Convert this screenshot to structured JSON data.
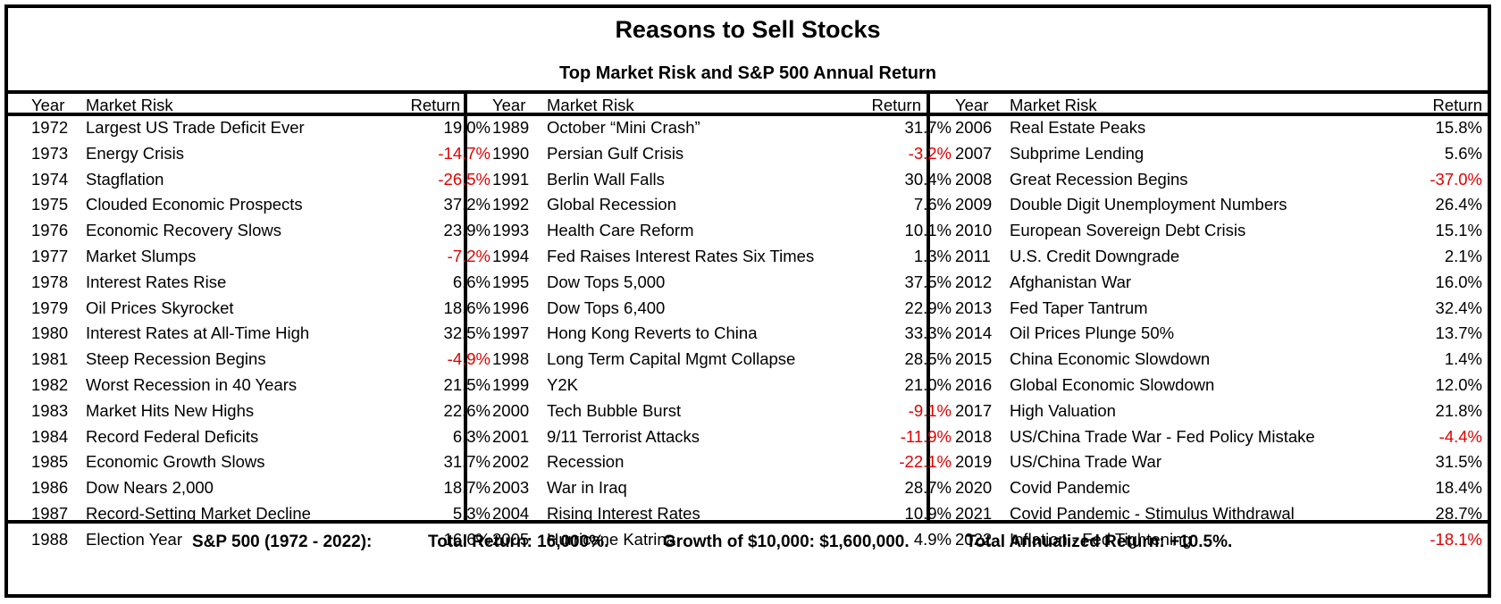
{
  "title": "Reasons to Sell Stocks",
  "subtitle": "Top Market Risk and S&P 500 Annual Return",
  "headers": {
    "year": "Year",
    "risk": "Market Risk",
    "return": "Return"
  },
  "negative_color": "#e00000",
  "columns": [
    {
      "rows": [
        {
          "year": "1972",
          "risk": "Largest US Trade Deficit Ever",
          "ret": "19.0%"
        },
        {
          "year": "1973",
          "risk": "Energy Crisis",
          "ret": "-14.7%"
        },
        {
          "year": "1974",
          "risk": "Stagflation",
          "ret": "-26.5%"
        },
        {
          "year": "1975",
          "risk": "Clouded Economic Prospects",
          "ret": "37.2%"
        },
        {
          "year": "1976",
          "risk": "Economic Recovery Slows",
          "ret": "23.9%"
        },
        {
          "year": "1977",
          "risk": "Market Slumps",
          "ret": "-7.2%"
        },
        {
          "year": "1978",
          "risk": "Interest Rates Rise",
          "ret": "6.6%"
        },
        {
          "year": "1979",
          "risk": "Oil Prices Skyrocket",
          "ret": "18.6%"
        },
        {
          "year": "1980",
          "risk": "Interest Rates at All-Time High",
          "ret": "32.5%"
        },
        {
          "year": "1981",
          "risk": "Steep Recession Begins",
          "ret": "-4.9%"
        },
        {
          "year": "1982",
          "risk": "Worst Recession in 40 Years",
          "ret": "21.5%"
        },
        {
          "year": "1983",
          "risk": "Market Hits New Highs",
          "ret": "22.6%"
        },
        {
          "year": "1984",
          "risk": "Record Federal Deficits",
          "ret": "6.3%"
        },
        {
          "year": "1985",
          "risk": "Economic Growth Slows",
          "ret": "31.7%"
        },
        {
          "year": "1986",
          "risk": "Dow Nears 2,000",
          "ret": "18.7%"
        },
        {
          "year": "1987",
          "risk": "Record-Setting Market Decline",
          "ret": "5.3%"
        },
        {
          "year": "1988",
          "risk": "Election Year",
          "ret": "16.6%"
        }
      ]
    },
    {
      "rows": [
        {
          "year": "1989",
          "risk": "October “Mini Crash”",
          "ret": "31.7%"
        },
        {
          "year": "1990",
          "risk": "Persian Gulf Crisis",
          "ret": "-3.2%"
        },
        {
          "year": "1991",
          "risk": "Berlin Wall Falls",
          "ret": "30.4%"
        },
        {
          "year": "1992",
          "risk": "Global Recession",
          "ret": "7.6%"
        },
        {
          "year": "1993",
          "risk": "Health Care Reform",
          "ret": "10.1%"
        },
        {
          "year": "1994",
          "risk": "Fed Raises Interest Rates Six Times",
          "ret": "1.3%"
        },
        {
          "year": "1995",
          "risk": "Dow Tops 5,000",
          "ret": "37.5%"
        },
        {
          "year": "1996",
          "risk": "Dow Tops 6,400",
          "ret": "22.9%"
        },
        {
          "year": "1997",
          "risk": "Hong Kong Reverts to China",
          "ret": "33.3%"
        },
        {
          "year": "1998",
          "risk": "Long Term Capital Mgmt Collapse",
          "ret": "28.5%"
        },
        {
          "year": "1999",
          "risk": "Y2K",
          "ret": "21.0%"
        },
        {
          "year": "2000",
          "risk": "Tech Bubble Burst",
          "ret": "-9.1%"
        },
        {
          "year": "2001",
          "risk": "9/11 Terrorist Attacks",
          "ret": "-11.9%"
        },
        {
          "year": "2002",
          "risk": "Recession",
          "ret": "-22.1%"
        },
        {
          "year": "2003",
          "risk": "War in Iraq",
          "ret": "28.7%"
        },
        {
          "year": "2004",
          "risk": "Rising Interest Rates",
          "ret": "10.9%"
        },
        {
          "year": "2005",
          "risk": "Hurricane Katrina",
          "ret": "4.9%"
        }
      ]
    },
    {
      "rows": [
        {
          "year": "2006",
          "risk": "Real Estate Peaks",
          "ret": "15.8%"
        },
        {
          "year": "2007",
          "risk": "Subprime Lending",
          "ret": "5.6%"
        },
        {
          "year": "2008",
          "risk": "Great Recession Begins",
          "ret": "-37.0%"
        },
        {
          "year": "2009",
          "risk": "Double Digit Unemployment Numbers",
          "ret": "26.4%"
        },
        {
          "year": "2010",
          "risk": "European Sovereign Debt Crisis",
          "ret": "15.1%"
        },
        {
          "year": "2011",
          "risk": "U.S. Credit Downgrade",
          "ret": "2.1%"
        },
        {
          "year": "2012",
          "risk": "Afghanistan War",
          "ret": "16.0%"
        },
        {
          "year": "2013",
          "risk": "Fed Taper Tantrum",
          "ret": "32.4%"
        },
        {
          "year": "2014",
          "risk": "Oil Prices Plunge 50%",
          "ret": "13.7%"
        },
        {
          "year": "2015",
          "risk": "China Economic Slowdown",
          "ret": "1.4%"
        },
        {
          "year": "2016",
          "risk": "Global Economic Slowdown",
          "ret": "12.0%"
        },
        {
          "year": "2017",
          "risk": "High Valuation",
          "ret": "21.8%"
        },
        {
          "year": "2018",
          "risk": "US/China Trade War - Fed Policy Mistake",
          "ret": "-4.4%"
        },
        {
          "year": "2019",
          "risk": "US/China Trade War",
          "ret": "31.5%"
        },
        {
          "year": "2020",
          "risk": "Covid Pandemic",
          "ret": "18.4%"
        },
        {
          "year": "2021",
          "risk": "Covid Pandemic - Stimulus Withdrawal",
          "ret": "28.7%"
        },
        {
          "year": "2022",
          "risk": "Inflation - Fed Tightening",
          "ret": "-18.1%"
        }
      ]
    }
  ],
  "footer": {
    "period": "S&P 500 (1972 - 2022):",
    "total_return": "Total Return: 16,000%.",
    "growth": "Growth of $10,000: $1,600,000.",
    "annualized": "Total Annualized Return: +10.5%."
  }
}
